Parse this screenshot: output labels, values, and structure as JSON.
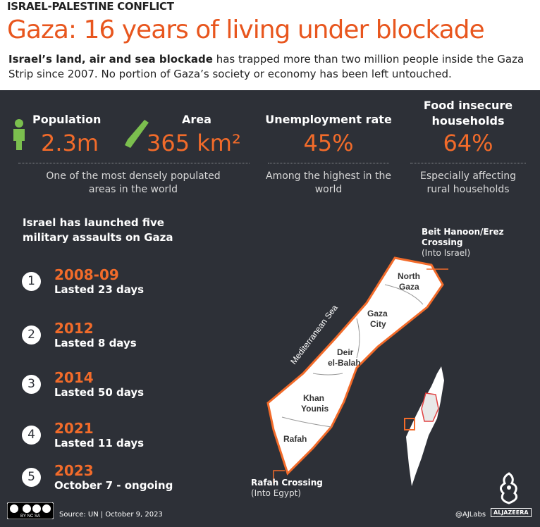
{
  "header": {
    "kicker": "ISRAEL-PALESTINE CONFLICT",
    "title": "Gaza: 16 years of living under blockade",
    "intro_bold": "Israel’s land, air and sea blockade",
    "intro_rest": " has trapped more than two million people inside the Gaza Strip since 2007. No portion of Gaza’s society or economy has been left untouched."
  },
  "stats": {
    "population": {
      "label": "Population",
      "value": "2.3m",
      "icon": "person-icon"
    },
    "area": {
      "label": "Area",
      "value": "365 km²",
      "icon": "gaza-strip-icon"
    },
    "pop_area_desc": "One of the most densely populated areas in the world",
    "unemployment": {
      "label": "Unemployment rate",
      "value": "45%",
      "desc": "Among the highest in the world"
    },
    "food": {
      "label": "Food insecure households",
      "value": "64%",
      "desc": "Especially affecting rural households"
    }
  },
  "assaults": {
    "heading": "Israel has launched five military assaults on Gaza",
    "items": [
      {
        "num": "1",
        "year": "2008-09",
        "duration": "Lasted 23 days"
      },
      {
        "num": "2",
        "year": "2012",
        "duration": "Lasted 8 days"
      },
      {
        "num": "3",
        "year": "2014",
        "duration": "Lasted 50 days"
      },
      {
        "num": "4",
        "year": "2021",
        "duration": "Lasted 11 days"
      },
      {
        "num": "5",
        "year": "2023",
        "duration": "October 7 - ongoing"
      }
    ]
  },
  "map": {
    "sea_label": "Mediterranean Sea",
    "regions": {
      "north_1": "North",
      "north_2": "Gaza",
      "city_1": "Gaza",
      "city_2": "City",
      "deir_1": "Deir",
      "deir_2": "el-Balah",
      "khan_1": "Khan",
      "khan_2": "Younis",
      "rafah": "Rafah"
    },
    "erez_name_1": "Beit Hanoon/Erez",
    "erez_name_2": "Crossing",
    "erez_sub": "(Into Israel)",
    "rafah_name": "Rafah Crossing",
    "rafah_sub": "(Into Egypt)"
  },
  "colors": {
    "accent": "#f26b2a",
    "background": "#2d3037",
    "title": "#e8561e"
  },
  "footer": {
    "cc": "BY NC SA",
    "source": "Source: UN | October 9, 2023",
    "credit": "@AJLabs",
    "brand": "ALJAZEERA"
  }
}
